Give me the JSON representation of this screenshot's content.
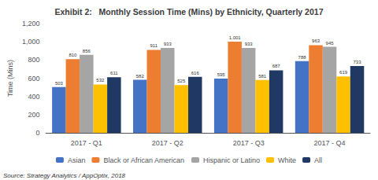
{
  "chart_data": {
    "type": "bar",
    "title": "Exhibit 2:   Monthly Session Time (Mins) by Ethnicity, Quarterly 2017",
    "ylabel": "Time (Mins)",
    "annotations": [
      "Source: Strategy Analytics / AppOptix, 2018"
    ],
    "categories": [
      "2017 - Q1",
      "2017 - Q2",
      "2017 - Q3",
      "2017 - Q4"
    ],
    "series": [
      {
        "name": "Asian",
        "color": "#4472c4",
        "values": [
          503,
          582,
          595,
          788
        ]
      },
      {
        "name": "Black or African American",
        "color": "#ed7d31",
        "values": [
          810,
          911,
          1001,
          963
        ],
        "value_labels": [
          "810",
          "911",
          "1,001",
          "963"
        ]
      },
      {
        "name": "Hispanic or Latino",
        "color": "#a5a5a5",
        "values": [
          856,
          933,
          933,
          945
        ]
      },
      {
        "name": "White",
        "color": "#ffc000",
        "values": [
          532,
          525,
          581,
          619
        ]
      },
      {
        "name": "All",
        "color": "#1f3864",
        "values": [
          611,
          616,
          687,
          733
        ]
      }
    ],
    "ylim": [
      0,
      1200
    ],
    "yticks": [
      0,
      200,
      400,
      600,
      800,
      {
        "value": 1000,
        "label": "1,000"
      },
      {
        "value": 1200,
        "label": "1,200"
      }
    ],
    "grid": false,
    "legend": "bottom",
    "data_labels": true
  }
}
